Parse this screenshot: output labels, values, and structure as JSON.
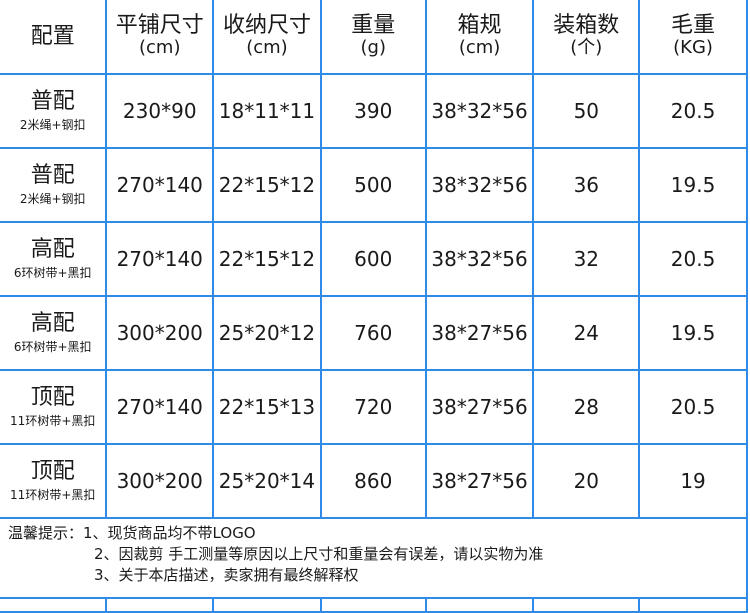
{
  "headers": [
    {
      "title": "配置",
      "unit": ""
    },
    {
      "title": "平铺尺寸",
      "unit": "(cm)"
    },
    {
      "title": "收纳尺寸",
      "unit": "(cm)"
    },
    {
      "title": "重量",
      "unit": "(g)"
    },
    {
      "title": "箱规",
      "unit": "(cm)"
    },
    {
      "title": "装箱数",
      "unit": "(个)"
    },
    {
      "title": "毛重",
      "unit": "(KG)"
    }
  ],
  "rows": [
    {
      "config": "普配",
      "sub": "2米绳+钢扣",
      "flat": "230*90",
      "stored": "18*11*11",
      "weight": "390",
      "box": "38*32*56",
      "qty": "50",
      "gross": "20.5"
    },
    {
      "config": "普配",
      "sub": "2米绳+钢扣",
      "flat": "270*140",
      "stored": "22*15*12",
      "weight": "500",
      "box": "38*32*56",
      "qty": "36",
      "gross": "19.5"
    },
    {
      "config": "高配",
      "sub": "6环树带+黑扣",
      "flat": "270*140",
      "stored": "22*15*12",
      "weight": "600",
      "box": "38*32*56",
      "qty": "32",
      "gross": "20.5"
    },
    {
      "config": "高配",
      "sub": "6环树带+黑扣",
      "flat": "300*200",
      "stored": "25*20*12",
      "weight": "760",
      "box": "38*27*56",
      "qty": "24",
      "gross": "19.5"
    },
    {
      "config": "顶配",
      "sub": "11环树带+黑扣",
      "flat": "270*140",
      "stored": "22*15*13",
      "weight": "720",
      "box": "38*27*56",
      "qty": "28",
      "gross": "20.5"
    },
    {
      "config": "顶配",
      "sub": "11环树带+黑扣",
      "flat": "300*200",
      "stored": "25*20*14",
      "weight": "860",
      "box": "38*27*56",
      "qty": "20",
      "gross": "19"
    }
  ],
  "notes": {
    "label": "温馨提示：",
    "items": [
      "1、现货商品均不带LOGO",
      "2、因裁剪 手工测量等原因以上尺寸和重量会有误差，请以实物为准",
      "3、关于本店描述，卖家拥有最终解释权"
    ]
  },
  "colors": {
    "grid": "#2f8ae8"
  }
}
